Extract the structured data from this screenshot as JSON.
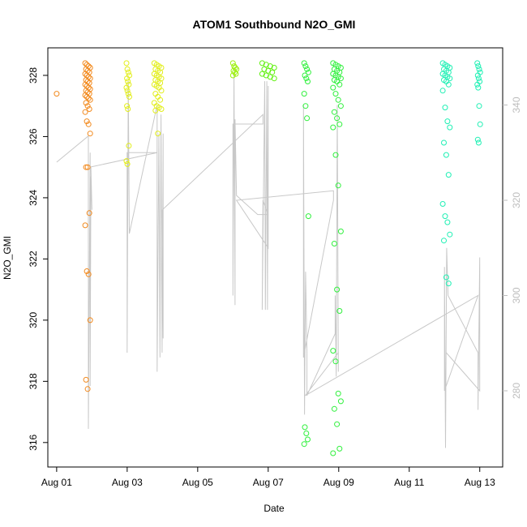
{
  "chart_data": {
    "type": "scatter",
    "title": "ATOM1 Southbound N2O_GMI",
    "xlabel": "Date",
    "ylabel": "N2O_GMI",
    "xlim": [
      -0.25,
      12.65
    ],
    "ylim": [
      315.2,
      328.9
    ],
    "x_ticks": [
      {
        "value": 0,
        "label": "Aug 01"
      },
      {
        "value": 2,
        "label": "Aug 03"
      },
      {
        "value": 4,
        "label": "Aug 05"
      },
      {
        "value": 6,
        "label": "Aug 07"
      },
      {
        "value": 8,
        "label": "Aug 09"
      },
      {
        "value": 10,
        "label": "Aug 11"
      },
      {
        "value": 12,
        "label": "Aug 13"
      }
    ],
    "y_ticks": [
      316,
      318,
      320,
      322,
      324,
      326,
      328
    ],
    "y2_ticks": [
      280,
      300,
      320,
      340
    ],
    "y2_lim": [
      264,
      352
    ],
    "grid": false,
    "marker_colors": {
      "Aug 01-02": "#f28a1e",
      "Aug 03-04": "#e2ee19",
      "Aug 06": "#9cf00e",
      "Aug 07": "#5ff00e",
      "Aug 08-09": "#2ff03c",
      "Aug 12-13": "#1ff0b4"
    },
    "line_color": "#c8c8c8",
    "clusters": [
      {
        "x": 0,
        "spread": 0,
        "color": "#f28a1e",
        "values": [
          327.4
        ]
      },
      {
        "x": 0.88,
        "spread": 0.07,
        "color": "#f28a1e",
        "values": [
          328.4,
          328.35,
          328.3,
          328.25,
          328.2,
          328.15,
          328.1,
          328.05,
          328.0,
          327.95,
          327.9,
          327.85,
          327.8,
          327.75,
          327.7,
          327.65,
          327.6,
          327.55,
          327.5,
          327.45,
          327.4,
          327.35,
          327.3,
          327.25,
          327.2,
          327.1,
          327.0,
          326.9,
          326.8,
          326.5,
          326.4,
          326.1,
          325.0,
          325.0,
          323.5,
          323.1,
          321.6,
          321.5,
          320.0,
          318.05,
          317.75
        ]
      },
      {
        "x": 2.02,
        "spread": 0.04,
        "color": "#e2ee19",
        "values": [
          328.4,
          328.2,
          328.1,
          328.0,
          327.9,
          327.8,
          327.7,
          327.6,
          327.5,
          327.4,
          327.3,
          327.0,
          326.9,
          325.7,
          325.2,
          325.1
        ]
      },
      {
        "x": 2.87,
        "spread": 0.1,
        "color": "#e2ee19",
        "values": [
          328.4,
          328.35,
          328.3,
          328.25,
          328.2,
          328.15,
          328.1,
          328.05,
          328.0,
          327.95,
          327.9,
          327.85,
          327.8,
          327.75,
          327.7,
          327.65,
          327.6,
          327.5,
          327.4,
          327.3,
          327.2,
          327.1,
          327.0,
          326.95,
          326.9,
          326.85,
          326.1
        ]
      },
      {
        "x": 5.05,
        "spread": 0.05,
        "color": "#9cf00e",
        "values": [
          328.4,
          328.3,
          328.25,
          328.2,
          328.15,
          328.1,
          328.05,
          328.0
        ]
      },
      {
        "x": 6.0,
        "spread": 0.17,
        "color": "#5ff00e",
        "values": [
          328.4,
          328.35,
          328.3,
          328.25,
          328.2,
          328.15,
          328.1,
          328.05,
          328.0,
          327.95,
          327.9
        ]
      },
      {
        "x": 7.08,
        "spread": 0.06,
        "color": "#2ff03c",
        "values": [
          328.4,
          328.3,
          328.2,
          328.1,
          328.0,
          327.9,
          327.8,
          327.4,
          327.0,
          326.6,
          323.4,
          316.5,
          316.3,
          316.1,
          315.95
        ]
      },
      {
        "x": 7.95,
        "spread": 0.11,
        "color": "#2ff03c",
        "values": [
          328.4,
          328.35,
          328.3,
          328.25,
          328.2,
          328.15,
          328.1,
          328.05,
          328.0,
          327.95,
          327.9,
          327.85,
          327.8,
          327.7,
          327.6,
          327.4,
          327.2,
          327.0,
          326.8,
          326.6,
          326.4,
          326.3,
          325.4,
          324.4,
          322.9,
          322.5,
          321.0,
          320.3,
          319.0,
          318.65,
          317.6,
          317.35,
          317.1,
          316.6,
          315.8,
          315.65
        ]
      },
      {
        "x": 11.05,
        "spread": 0.1,
        "color": "#1ff0b4",
        "values": [
          328.4,
          328.35,
          328.3,
          328.25,
          328.2,
          328.15,
          328.1,
          328.05,
          328.0,
          327.95,
          327.9,
          327.85,
          327.8,
          327.7,
          327.5,
          326.95,
          326.5,
          326.3,
          325.8,
          325.4,
          324.75,
          323.8,
          323.4,
          323.2,
          322.8,
          322.6,
          321.4,
          321.2
        ]
      },
      {
        "x": 11.97,
        "spread": 0.04,
        "color": "#1ff0b4",
        "values": [
          328.4,
          328.3,
          328.2,
          328.1,
          328.0,
          327.9,
          327.8,
          327.7,
          327.6,
          327.0,
          326.4,
          325.9,
          325.8
        ]
      }
    ],
    "line_y2_path": [
      [
        0.0,
        328.0
      ],
      [
        0.9,
        333.5
      ],
      [
        0.9,
        272.0
      ],
      [
        0.95,
        330.0
      ],
      [
        0.95,
        281.0
      ],
      [
        0.97,
        325.0
      ],
      [
        1.0,
        318.0
      ],
      [
        0.97,
        327.0
      ],
      [
        2.85,
        330.0
      ],
      [
        2.0,
        330.0
      ],
      [
        2.0,
        288.0
      ],
      [
        2.03,
        345.0
      ],
      [
        2.06,
        313.0
      ],
      [
        2.85,
        340.0
      ],
      [
        2.85,
        284.0
      ],
      [
        2.9,
        334.0
      ],
      [
        2.93,
        287.0
      ],
      [
        2.96,
        338.0
      ],
      [
        2.99,
        288.0
      ],
      [
        3.02,
        334.0
      ],
      [
        3.02,
        291.0
      ],
      [
        3.0,
        318.0
      ],
      [
        5.85,
        338.0
      ],
      [
        5.85,
        336.0
      ],
      [
        5.0,
        336.0
      ],
      [
        5.0,
        300.0
      ],
      [
        5.03,
        347.0
      ],
      [
        5.06,
        298.0
      ],
      [
        5.06,
        337.0
      ],
      [
        5.1,
        321.0
      ],
      [
        5.7,
        317.0
      ],
      [
        6.0,
        317.0
      ],
      [
        5.85,
        320.0
      ],
      [
        5.83,
        297.0
      ],
      [
        5.9,
        345.0
      ],
      [
        5.92,
        297.0
      ],
      [
        5.96,
        345.0
      ],
      [
        5.98,
        297.0
      ],
      [
        6.0,
        344.0
      ],
      [
        6.0,
        310.0
      ],
      [
        5.1,
        320.0
      ],
      [
        7.85,
        322.0
      ],
      [
        7.85,
        320.0
      ],
      [
        7.0,
        287.0
      ],
      [
        7.0,
        340.0
      ],
      [
        7.03,
        275.0
      ],
      [
        7.06,
        305.0
      ],
      [
        7.1,
        288.0
      ],
      [
        7.1,
        279.0
      ],
      [
        7.9,
        292.0
      ],
      [
        7.9,
        300.0
      ],
      [
        7.93,
        283.0
      ],
      [
        7.96,
        340.0
      ],
      [
        7.99,
        284.0
      ],
      [
        7.99,
        288.0
      ],
      [
        7.05,
        279.0
      ],
      [
        11.95,
        300.0
      ],
      [
        11.0,
        280.0
      ],
      [
        11.0,
        306.0
      ],
      [
        11.03,
        268.0
      ],
      [
        11.06,
        310.0
      ],
      [
        11.1,
        300.0
      ],
      [
        11.95,
        288.0
      ],
      [
        11.95,
        276.0
      ],
      [
        12.0,
        308.0
      ],
      [
        12.0,
        280.0
      ],
      [
        11.05,
        288.0
      ]
    ]
  }
}
